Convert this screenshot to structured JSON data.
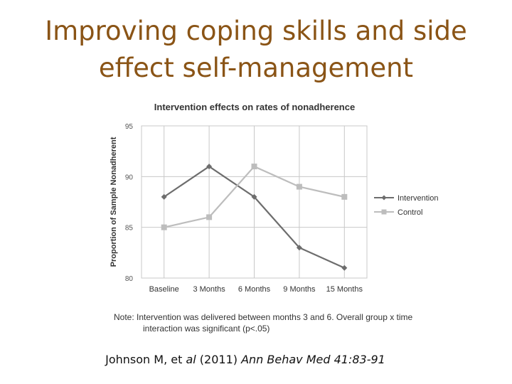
{
  "slide": {
    "title_line1": "Improving coping skills and side",
    "title_line2": "effect self-management"
  },
  "citation": {
    "authors": "Johnson M, et ",
    "etal": "al",
    "year": " (2011) ",
    "journal": "Ann Behav Med 41:83-91"
  },
  "colors": {
    "title": "#8a5416",
    "intervention": "#6d6d6d",
    "control": "#bdbdbd",
    "grid": "#c8c8c8"
  },
  "chart_data": {
    "type": "line",
    "title": "Intervention effects on rates of nonadherence",
    "xlabel": "",
    "ylabel": "Proportion of Sample Nonadherent",
    "categories": [
      "Baseline",
      "3 Months",
      "6 Months",
      "9 Months",
      "15 Months"
    ],
    "ylim": [
      0.8,
      0.95
    ],
    "yticks": [
      0.8,
      0.85,
      0.9,
      0.95
    ],
    "ytick_labels": [
      "80",
      "85",
      "90",
      "95"
    ],
    "series": [
      {
        "name": "Intervention",
        "values": [
          0.88,
          0.91,
          0.88,
          0.83,
          0.81
        ]
      },
      {
        "name": "Control",
        "values": [
          0.85,
          0.86,
          0.91,
          0.89,
          0.88
        ]
      }
    ],
    "note_line1": "Note:  Intervention was delivered between months 3 and 6.  Overall group x time",
    "note_line2": "interaction was significant (p<.05)",
    "legend_position": "right",
    "grid": true
  }
}
